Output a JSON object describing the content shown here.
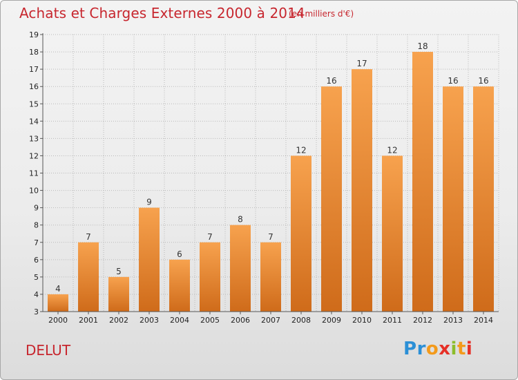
{
  "chart_data": {
    "type": "bar",
    "title": "Achats et Charges Externes 2000 à 2014",
    "subtitle": "(en milliers d'€)",
    "xlabel": "",
    "ylabel": "",
    "categories": [
      "2000",
      "2001",
      "2002",
      "2003",
      "2004",
      "2005",
      "2006",
      "2007",
      "2008",
      "2009",
      "2010",
      "2011",
      "2012",
      "2013",
      "2014"
    ],
    "values": [
      4,
      7,
      5,
      9,
      6,
      7,
      8,
      7,
      12,
      16,
      17,
      12,
      18,
      16,
      16
    ],
    "ylim": [
      3,
      19
    ],
    "yticks": [
      "3",
      "4",
      "5",
      "6",
      "7",
      "8",
      "9",
      "10",
      "11",
      "12",
      "13",
      "14",
      "15",
      "16",
      "17",
      "18",
      "19"
    ],
    "grid": true,
    "bar_color_top": "#f7a24e",
    "bar_color_bottom": "#cf6b1a"
  },
  "labels": {
    "commune": "DELUT",
    "logo_letters": [
      "P",
      "r",
      "o",
      "x",
      "i",
      "t",
      "i"
    ],
    "logo_colors": [
      "#2b8fd6",
      "#2b8fd6",
      "#f39a1b",
      "#e63027",
      "#8cbd2b",
      "#f39a1b",
      "#e63027"
    ]
  },
  "colors": {
    "title": "#c7262e",
    "grid": "#b9b9b9",
    "axis": "#555555"
  }
}
